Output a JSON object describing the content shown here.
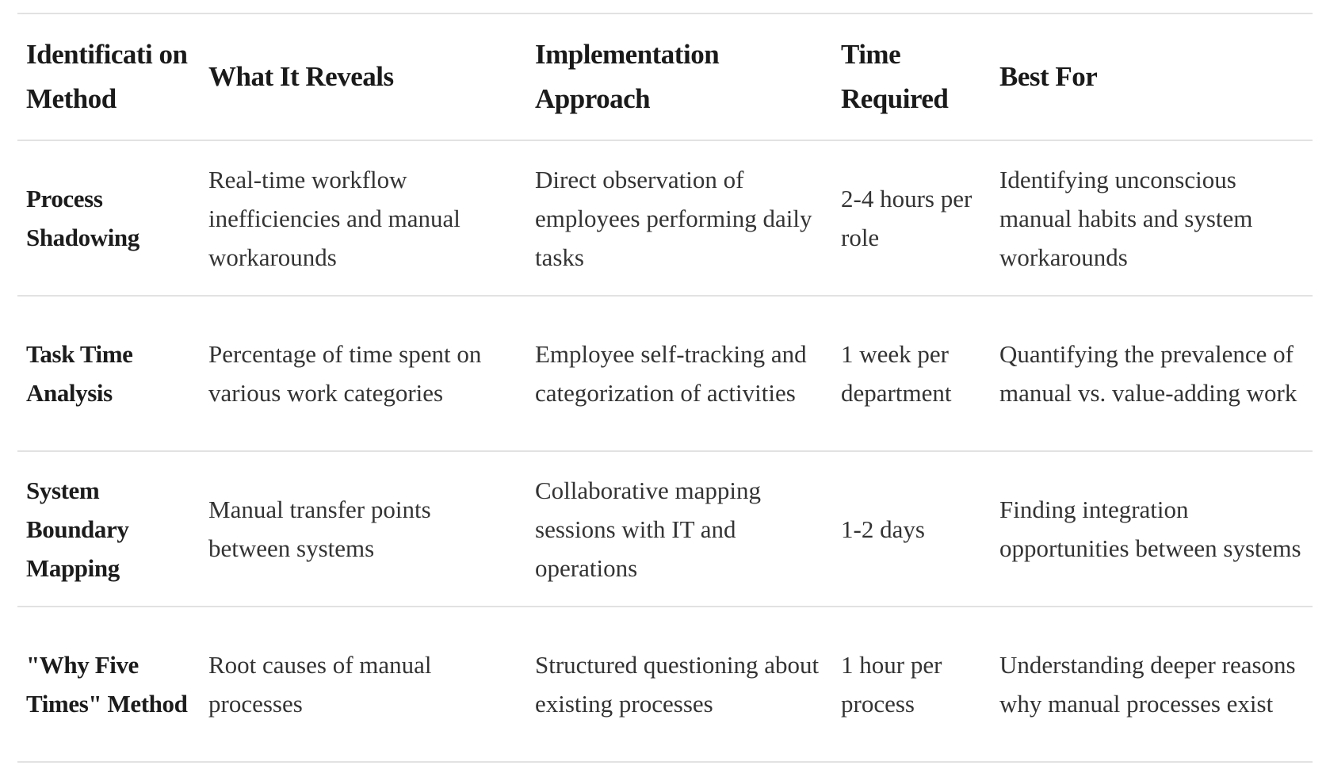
{
  "table": {
    "headers": [
      "Identificati on Method",
      "What It Reveals",
      "Implementation Approach",
      "Time Required",
      "Best For"
    ],
    "rows": [
      {
        "method": "Process Shadowing",
        "reveals": "Real-time workflow inefficiencies and manual workarounds",
        "approach": "Direct observation of employees performing daily tasks",
        "time": "2-4 hours per role",
        "best_for": "Identifying unconscious manual habits and system workarounds"
      },
      {
        "method": "Task Time Analysis",
        "reveals": "Percentage of time spent on various work categories",
        "approach": "Employee self-tracking and categorization of activities",
        "time": "1 week per department",
        "best_for": "Quantifying the prevalence of manual vs. value-adding work"
      },
      {
        "method": "System Boundary Mapping",
        "reveals": "Manual transfer points between systems",
        "approach": "Collaborative mapping sessions with IT and operations",
        "time": "1-2 days",
        "best_for": "Finding integration opportunities between systems"
      },
      {
        "method": "\"Why Five Times\" Method",
        "reveals": "Root causes of manual processes",
        "approach": "Structured questioning about existing processes",
        "time": "1 hour per process",
        "best_for": "Understanding deeper reasons why manual processes exist"
      }
    ]
  }
}
